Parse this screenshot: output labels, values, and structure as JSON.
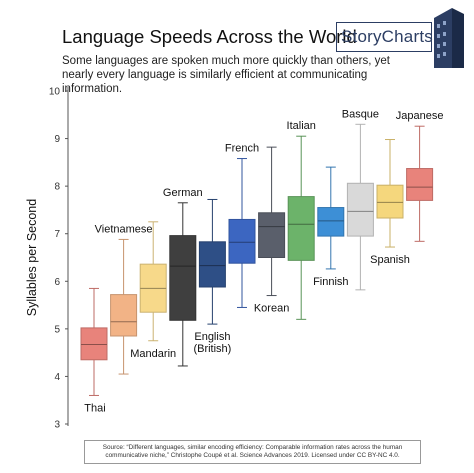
{
  "header": {
    "title": "Language Speeds Across the World",
    "subtitle": "Some languages are spoken much more quickly than others, yet nearly every language is similarly efficient at communicating information.",
    "logo": "StoryCharts"
  },
  "source": {
    "line1": "Source: “Different languages, similar encoding efficiency: Comparable information rates across the human",
    "line2": "communicative niche,” Christophe Coupé et al. Science Advances 2019. Licensed under CC BY-NC 4.0."
  },
  "chart_data": {
    "type": "box",
    "ylabel": "Syllables per Second",
    "ylim": [
      3,
      10
    ],
    "yticks": [
      3,
      4,
      5,
      6,
      7,
      8,
      9,
      10
    ],
    "grid": false,
    "languages": [
      {
        "name": "Thai",
        "min": 3.6,
        "q1": 4.35,
        "median": 4.67,
        "q3": 5.02,
        "max": 5.85,
        "color": "#e8837b"
      },
      {
        "name": "Vietnamese",
        "min": 4.05,
        "q1": 4.85,
        "median": 5.15,
        "q3": 5.72,
        "max": 6.88,
        "color": "#f2b386"
      },
      {
        "name": "Mandarin",
        "min": 4.75,
        "q1": 5.35,
        "median": 5.85,
        "q3": 6.36,
        "max": 7.25,
        "color": "#f7d98a"
      },
      {
        "name": "German",
        "min": 4.22,
        "q1": 5.18,
        "median": 6.32,
        "q3": 6.96,
        "max": 7.65,
        "color": "#3f3f3f"
      },
      {
        "name": "English (British)",
        "min": 5.1,
        "q1": 5.88,
        "median": 6.33,
        "q3": 6.83,
        "max": 7.72,
        "color": "#2e4f86"
      },
      {
        "name": "French",
        "min": 5.45,
        "q1": 6.38,
        "median": 6.82,
        "q3": 7.3,
        "max": 8.58,
        "color": "#3c66c1"
      },
      {
        "name": "Korean",
        "min": 5.7,
        "q1": 6.5,
        "median": 7.15,
        "q3": 7.44,
        "max": 8.82,
        "color": "#5a5f6b"
      },
      {
        "name": "Italian",
        "min": 5.2,
        "q1": 6.44,
        "median": 7.2,
        "q3": 7.78,
        "max": 9.05,
        "color": "#6cb36a"
      },
      {
        "name": "Finnish",
        "min": 6.26,
        "q1": 6.95,
        "median": 7.27,
        "q3": 7.55,
        "max": 8.4,
        "color": "#3d8fd6"
      },
      {
        "name": "Basque",
        "min": 5.82,
        "q1": 6.95,
        "median": 7.47,
        "q3": 8.06,
        "max": 9.3,
        "color": "#d9d9d9"
      },
      {
        "name": "Spanish",
        "min": 6.72,
        "q1": 7.33,
        "median": 7.66,
        "q3": 8.02,
        "max": 8.98,
        "color": "#f5d77d"
      },
      {
        "name": "Japanese",
        "min": 6.84,
        "q1": 7.7,
        "median": 7.98,
        "q3": 8.37,
        "max": 9.26,
        "color": "#e8837b"
      }
    ]
  }
}
